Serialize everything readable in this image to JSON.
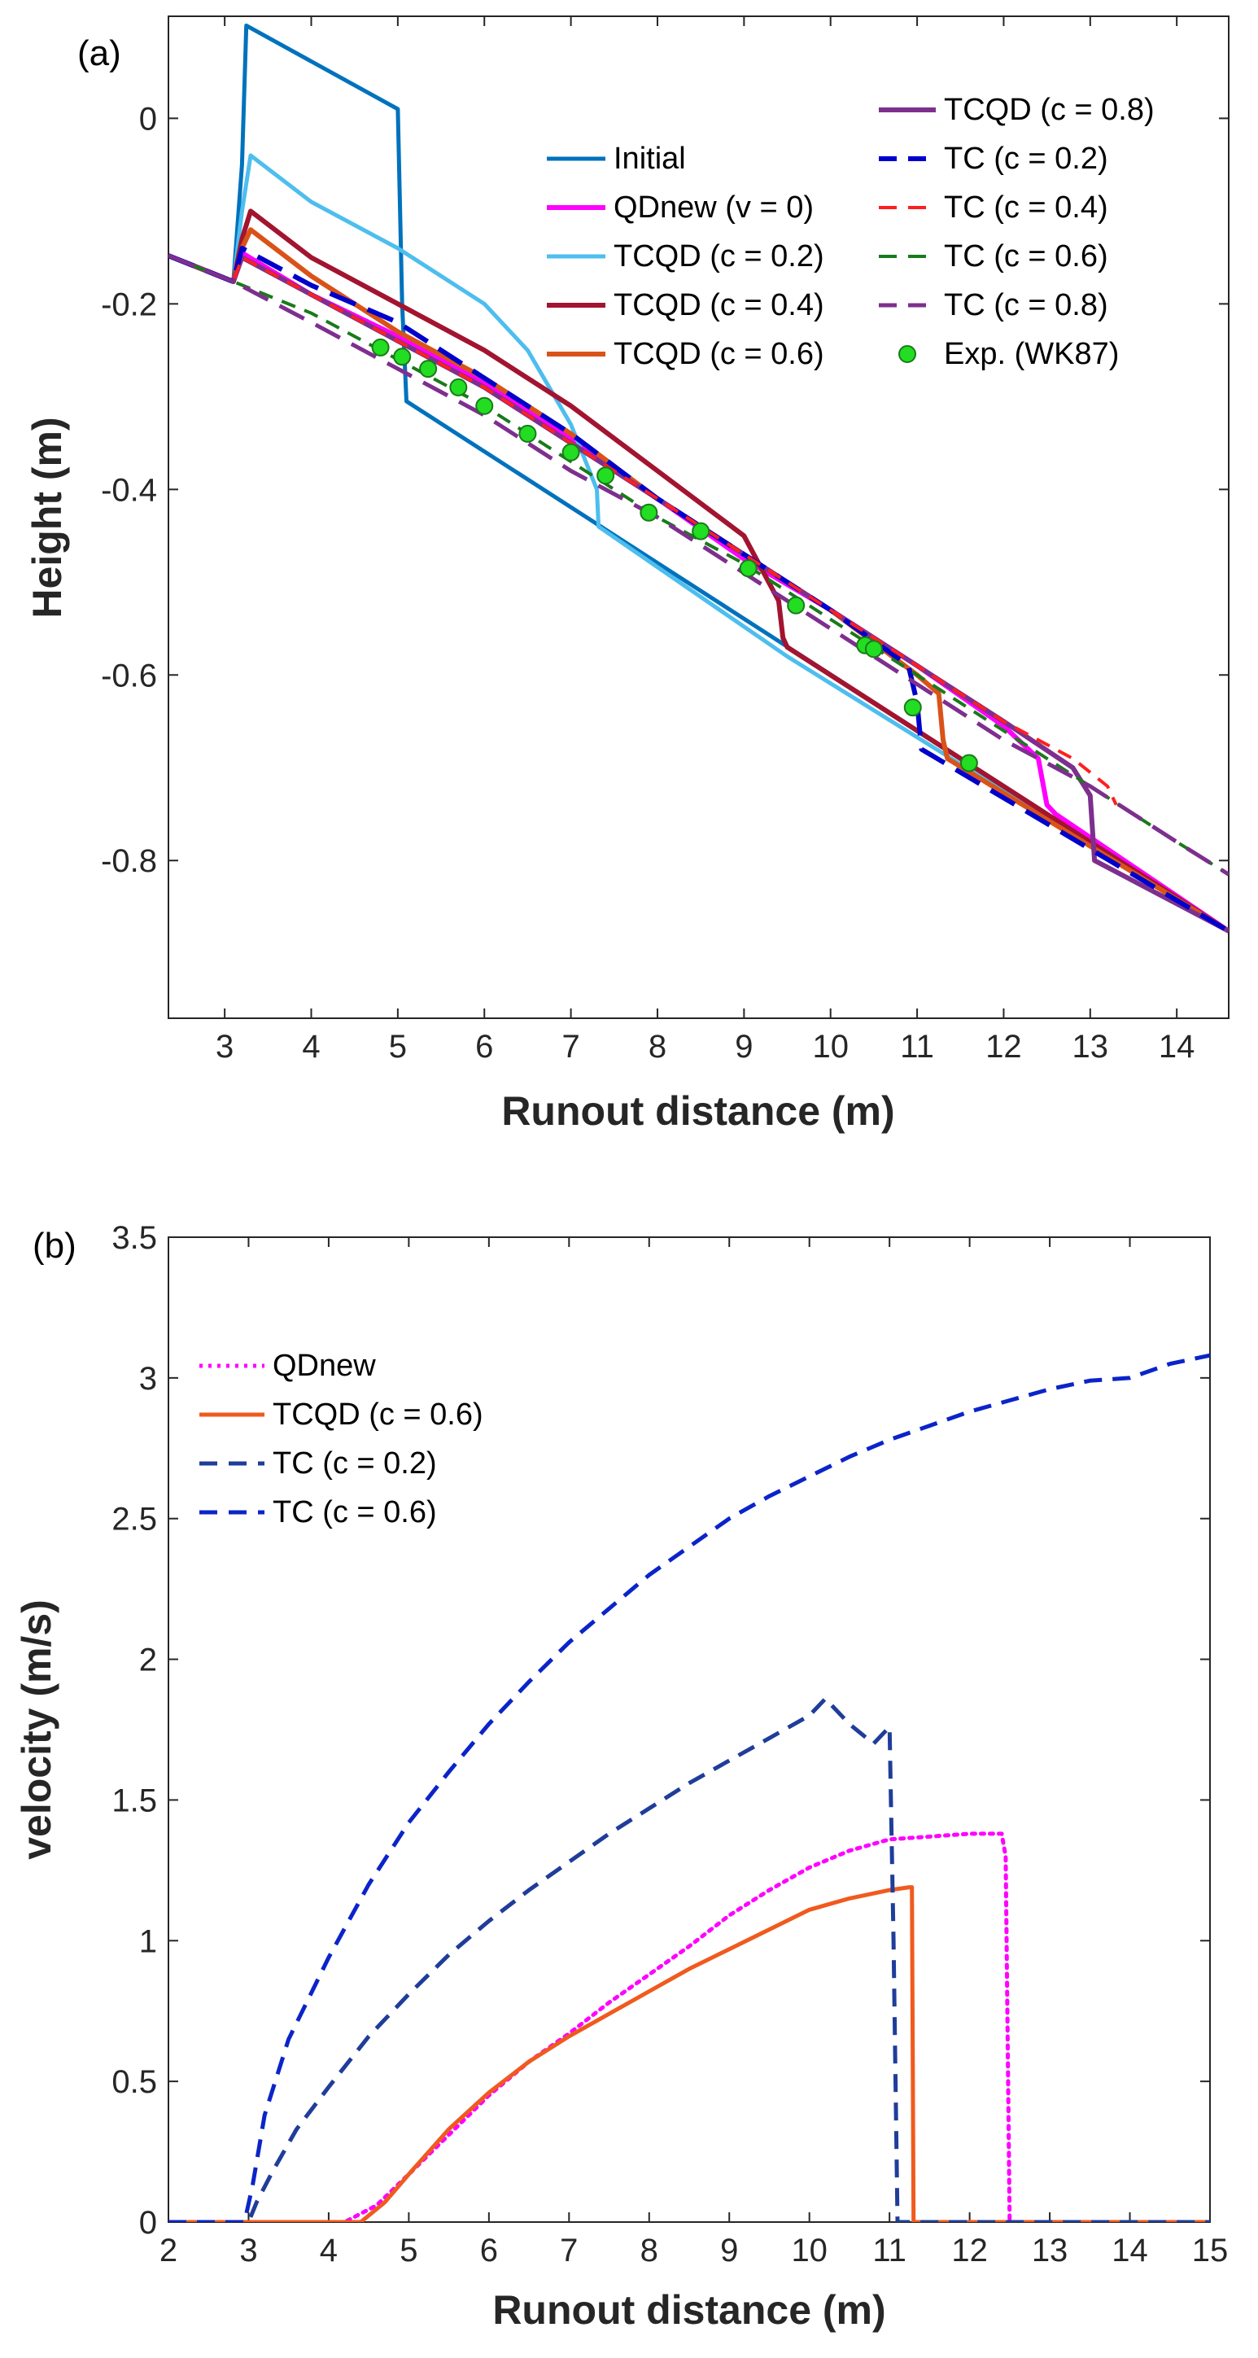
{
  "chart_data": [
    {
      "id": "a",
      "panel_label": "(a)",
      "type": "line",
      "xlabel": "Runout distance (m)",
      "ylabel": "Height (m)",
      "xlim": [
        2.35,
        14.6
      ],
      "ylim": [
        -0.97,
        0.11
      ],
      "xticks": [
        3,
        4,
        5,
        6,
        7,
        8,
        9,
        10,
        11,
        12,
        13,
        14
      ],
      "yticks": [
        0,
        -0.2,
        -0.4,
        -0.6,
        -0.8
      ],
      "xtick_labels": [
        "3",
        "4",
        "5",
        "6",
        "7",
        "8",
        "9",
        "10",
        "11",
        "12",
        "13",
        "14"
      ],
      "ytick_labels": [
        "0",
        "-0.2",
        "-0.4",
        "-0.6",
        "-0.8"
      ],
      "legend_position": "top-right",
      "series": [
        {
          "name": "Initial",
          "color": "#0072bd",
          "dash": "solid",
          "width": 5,
          "x": [
            2.35,
            3.1,
            3.2,
            3.25,
            5.0,
            5.05,
            5.1,
            14.6
          ],
          "y": [
            -0.148,
            -0.176,
            -0.05,
            0.1,
            0.01,
            -0.2,
            -0.305,
            -0.876
          ]
        },
        {
          "name": "QDnew (v = 0)",
          "color": "#ff00ff",
          "dash": "solid",
          "width": 6,
          "x": [
            2.35,
            3.1,
            3.2,
            4,
            5,
            6,
            7,
            8,
            9,
            10,
            11,
            12,
            12.4,
            12.5,
            12.6,
            14.6
          ],
          "y": [
            -0.148,
            -0.176,
            -0.145,
            -0.19,
            -0.235,
            -0.285,
            -0.345,
            -0.41,
            -0.475,
            -0.53,
            -0.59,
            -0.655,
            -0.69,
            -0.74,
            -0.75,
            -0.876
          ]
        },
        {
          "name": "TCQD (c = 0.2)",
          "color": "#4dbeee",
          "dash": "solid",
          "width": 5,
          "x": [
            2.35,
            3.1,
            3.2,
            3.3,
            4,
            5,
            6,
            6.5,
            7,
            7.3,
            7.32,
            9.5,
            14.6
          ],
          "y": [
            -0.148,
            -0.176,
            -0.1,
            -0.04,
            -0.09,
            -0.14,
            -0.2,
            -0.25,
            -0.33,
            -0.4,
            -0.44,
            -0.58,
            -0.876
          ]
        },
        {
          "name": "TCQD (c = 0.4)",
          "color": "#a2142f",
          "dash": "solid",
          "width": 6,
          "x": [
            2.35,
            3.1,
            3.2,
            3.3,
            4,
            5,
            6,
            7,
            8,
            9,
            9.4,
            9.45,
            9.5,
            14.6
          ],
          "y": [
            -0.148,
            -0.176,
            -0.13,
            -0.1,
            -0.15,
            -0.2,
            -0.25,
            -0.31,
            -0.38,
            -0.45,
            -0.52,
            -0.56,
            -0.57,
            -0.876
          ]
        },
        {
          "name": "TCQD (c = 0.6)",
          "color": "#d95319",
          "dash": "solid",
          "width": 6,
          "x": [
            2.35,
            3.1,
            3.2,
            3.3,
            4,
            5,
            6,
            7,
            8,
            9,
            10,
            11,
            11.25,
            11.3,
            11.35,
            14.6
          ],
          "y": [
            -0.148,
            -0.176,
            -0.14,
            -0.12,
            -0.17,
            -0.23,
            -0.28,
            -0.34,
            -0.41,
            -0.47,
            -0.53,
            -0.6,
            -0.62,
            -0.67,
            -0.69,
            -0.876
          ]
        },
        {
          "name": "TCQD (c = 0.8)",
          "color": "#7e2f8e",
          "dash": "solid",
          "width": 6,
          "x": [
            2.35,
            3.1,
            3.2,
            4,
            5,
            6,
            7,
            8,
            9,
            10,
            11,
            12,
            12.8,
            13.0,
            13.05,
            14.6
          ],
          "y": [
            -0.148,
            -0.176,
            -0.15,
            -0.19,
            -0.24,
            -0.29,
            -0.35,
            -0.41,
            -0.47,
            -0.53,
            -0.59,
            -0.65,
            -0.7,
            -0.73,
            -0.8,
            -0.876
          ]
        },
        {
          "name": "TC (c = 0.2)",
          "color": "#0000cc",
          "dash": "long",
          "width": 6,
          "x": [
            2.35,
            3.1,
            3.2,
            4,
            5,
            6,
            7,
            8,
            9,
            10,
            10.9,
            11.0,
            11.05,
            14.6
          ],
          "y": [
            -0.148,
            -0.176,
            -0.14,
            -0.18,
            -0.22,
            -0.28,
            -0.34,
            -0.41,
            -0.47,
            -0.53,
            -0.59,
            -0.63,
            -0.68,
            -0.876
          ]
        },
        {
          "name": "TC (c = 0.4)",
          "color": "#ff1f1f",
          "dash": "medium",
          "width": 4,
          "x": [
            2.35,
            3.1,
            3.2,
            4,
            5,
            6,
            7,
            8,
            9,
            10,
            11,
            12,
            12.8,
            13.2,
            13.3
          ],
          "y": [
            -0.148,
            -0.176,
            -0.15,
            -0.19,
            -0.24,
            -0.29,
            -0.35,
            -0.41,
            -0.47,
            -0.53,
            -0.59,
            -0.65,
            -0.69,
            -0.72,
            -0.74
          ]
        },
        {
          "name": "TC (c = 0.6)",
          "color": "#1a7a1a",
          "dash": "medium",
          "width": 4,
          "x": [
            2.35,
            3.1,
            4,
            5,
            6,
            7,
            8,
            9,
            10,
            11,
            12,
            13,
            14,
            14.6
          ],
          "y": [
            -0.148,
            -0.176,
            -0.21,
            -0.26,
            -0.31,
            -0.37,
            -0.43,
            -0.48,
            -0.54,
            -0.6,
            -0.66,
            -0.72,
            -0.78,
            -0.815
          ]
        },
        {
          "name": "TC (c = 0.8)",
          "color": "#7e2f8e",
          "dash": "long",
          "width": 5,
          "x": [
            2.35,
            3.1,
            4,
            5,
            6,
            7,
            8,
            9,
            10,
            11,
            12,
            13,
            14,
            14.6
          ],
          "y": [
            -0.148,
            -0.176,
            -0.22,
            -0.27,
            -0.32,
            -0.38,
            -0.43,
            -0.49,
            -0.55,
            -0.61,
            -0.67,
            -0.72,
            -0.78,
            -0.815
          ]
        },
        {
          "name": "Exp. (WK87)",
          "color": "#22dd22",
          "type": "scatter",
          "x": [
            4.8,
            5.05,
            5.35,
            5.7,
            6.0,
            6.5,
            7.0,
            7.4,
            7.9,
            8.5,
            9.05,
            9.6,
            10.4,
            10.5,
            10.95,
            11.6
          ],
          "y": [
            -0.247,
            -0.257,
            -0.27,
            -0.29,
            -0.31,
            -0.34,
            -0.36,
            -0.385,
            -0.425,
            -0.445,
            -0.485,
            -0.525,
            -0.568,
            -0.572,
            -0.635,
            -0.695
          ]
        }
      ]
    },
    {
      "id": "b",
      "panel_label": "(b)",
      "type": "line",
      "xlabel": "Runout distance (m)",
      "ylabel": "velocity (m/s)",
      "xlim": [
        2,
        15
      ],
      "ylim": [
        0,
        3.5
      ],
      "xticks": [
        2,
        3,
        4,
        5,
        6,
        7,
        8,
        9,
        10,
        11,
        12,
        13,
        14,
        15
      ],
      "yticks": [
        0,
        0.5,
        1,
        1.5,
        2,
        2.5,
        3,
        3.5
      ],
      "xtick_labels": [
        "2",
        "3",
        "4",
        "5",
        "6",
        "7",
        "8",
        "9",
        "10",
        "11",
        "12",
        "13",
        "14",
        "15"
      ],
      "ytick_labels": [
        "0",
        "0.5",
        "1",
        "1.5",
        "2",
        "2.5",
        "3",
        "3.5"
      ],
      "legend_position": "top-left",
      "series": [
        {
          "name": "QDnew",
          "color": "#ff00ff",
          "dash": "dotted",
          "width": 5,
          "x": [
            2,
            4.2,
            4.6,
            5,
            5.5,
            6,
            6.5,
            7,
            7.5,
            8,
            8.5,
            9,
            9.5,
            10,
            10.5,
            11,
            11.5,
            12,
            12.4,
            12.45,
            12.5,
            15
          ],
          "y": [
            0,
            0,
            0.06,
            0.17,
            0.31,
            0.45,
            0.57,
            0.67,
            0.78,
            0.88,
            0.98,
            1.09,
            1.18,
            1.26,
            1.32,
            1.36,
            1.37,
            1.38,
            1.38,
            1.3,
            0,
            0
          ]
        },
        {
          "name": "TCQD (c = 0.6)",
          "color": "#f05a1e",
          "dash": "solid",
          "width": 5,
          "x": [
            2,
            4.4,
            4.7,
            5,
            5.5,
            6,
            6.5,
            7,
            7.5,
            8,
            8.5,
            9,
            9.5,
            10,
            10.5,
            11,
            11.25,
            11.28,
            11.3,
            15
          ],
          "y": [
            0,
            0,
            0.07,
            0.17,
            0.33,
            0.46,
            0.57,
            0.66,
            0.74,
            0.82,
            0.9,
            0.97,
            1.04,
            1.11,
            1.15,
            1.18,
            1.19,
            1.19,
            0,
            0
          ]
        },
        {
          "name": "TC (c = 0.2)",
          "color": "#1f3d99",
          "dash": "dashed",
          "width": 5,
          "x": [
            2,
            3.0,
            3.1,
            3.3,
            3.6,
            4,
            4.5,
            5,
            5.5,
            6,
            6.5,
            7,
            7.5,
            8,
            8.5,
            9,
            9.5,
            10,
            10.2,
            10.5,
            10.8,
            11.0,
            11.05,
            11.1,
            15
          ],
          "y": [
            0,
            0,
            0.07,
            0.18,
            0.33,
            0.48,
            0.66,
            0.81,
            0.95,
            1.07,
            1.18,
            1.28,
            1.38,
            1.47,
            1.56,
            1.64,
            1.72,
            1.8,
            1.86,
            1.77,
            1.7,
            1.76,
            1.0,
            0,
            0
          ]
        },
        {
          "name": "TC (c = 0.6)",
          "color": "#0b24c9",
          "dash": "dashed",
          "width": 5,
          "x": [
            2,
            2.95,
            3.05,
            3.2,
            3.5,
            4,
            4.5,
            5,
            5.5,
            6,
            6.5,
            7,
            7.5,
            8,
            8.5,
            9,
            9.5,
            10,
            10.5,
            11,
            11.5,
            12,
            12.5,
            13,
            13.5,
            14,
            14.5,
            15
          ],
          "y": [
            0,
            0,
            0.13,
            0.38,
            0.65,
            0.94,
            1.2,
            1.42,
            1.6,
            1.77,
            1.92,
            2.06,
            2.18,
            2.3,
            2.4,
            2.5,
            2.58,
            2.65,
            2.72,
            2.78,
            2.83,
            2.88,
            2.92,
            2.96,
            2.99,
            3.0,
            3.05,
            3.08
          ]
        }
      ]
    }
  ]
}
